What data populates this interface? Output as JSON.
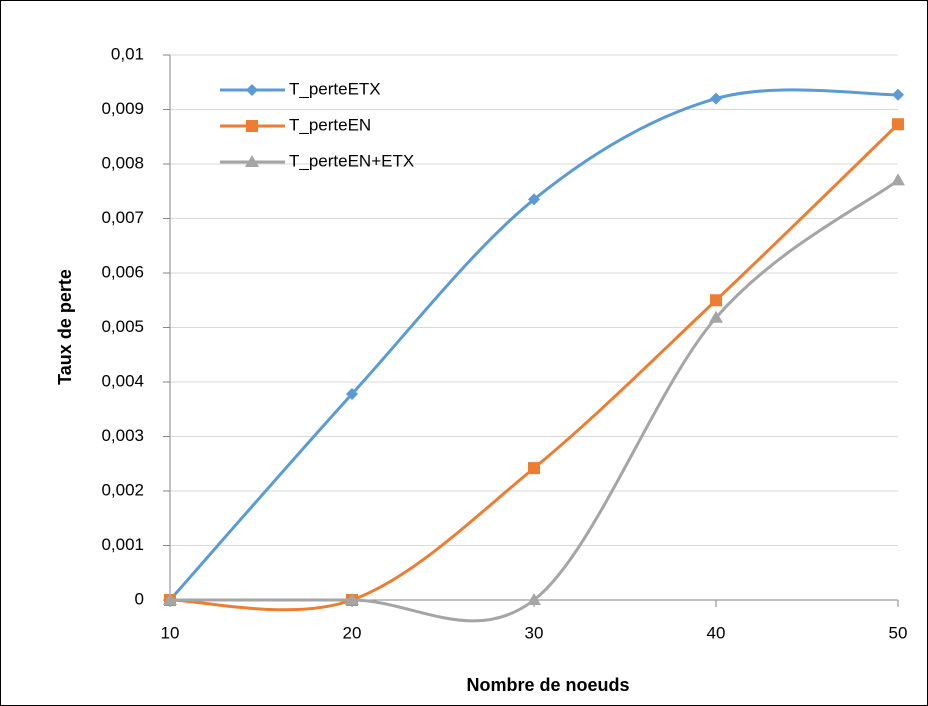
{
  "chart_data": {
    "type": "line",
    "x_label": "Nombre de noeuds",
    "y_label": "Taux de perte",
    "x": [
      10,
      20,
      30,
      40,
      50
    ],
    "series": [
      {
        "name": "T_perteETX",
        "color": "#5b9bd5",
        "marker": "diamond",
        "values": [
          0,
          0.00378,
          0.00735,
          0.0092,
          0.00927
        ]
      },
      {
        "name": "T_perteEN",
        "color": "#ed7d31",
        "marker": "square",
        "values": [
          0,
          0,
          0.00242,
          0.0055,
          0.00873
        ]
      },
      {
        "name": "T_perteEN+ETX",
        "color": "#a5a5a5",
        "marker": "triangle",
        "values": [
          0,
          0,
          0,
          0.00518,
          0.0077
        ]
      }
    ],
    "smooth": true,
    "xlim": [
      10,
      50
    ],
    "xticks": [
      10,
      20,
      30,
      40,
      50
    ],
    "ylim": [
      0,
      0.01
    ],
    "yticks": [
      0,
      {
        "value": 0.001,
        "label": "0,001"
      },
      {
        "value": 0.002,
        "label": "0,002"
      },
      {
        "value": 0.003,
        "label": "0,003"
      },
      {
        "value": 0.004,
        "label": "0,004"
      },
      {
        "value": 0.005,
        "label": "0,005"
      },
      {
        "value": 0.006,
        "label": "0,006"
      },
      {
        "value": 0.007,
        "label": "0,007"
      },
      {
        "value": 0.008,
        "label": "0,008"
      },
      {
        "value": 0.009,
        "label": "0,009"
      },
      {
        "value": 0.01,
        "label": "0,01"
      }
    ],
    "grid": true,
    "legend": "top-left"
  }
}
